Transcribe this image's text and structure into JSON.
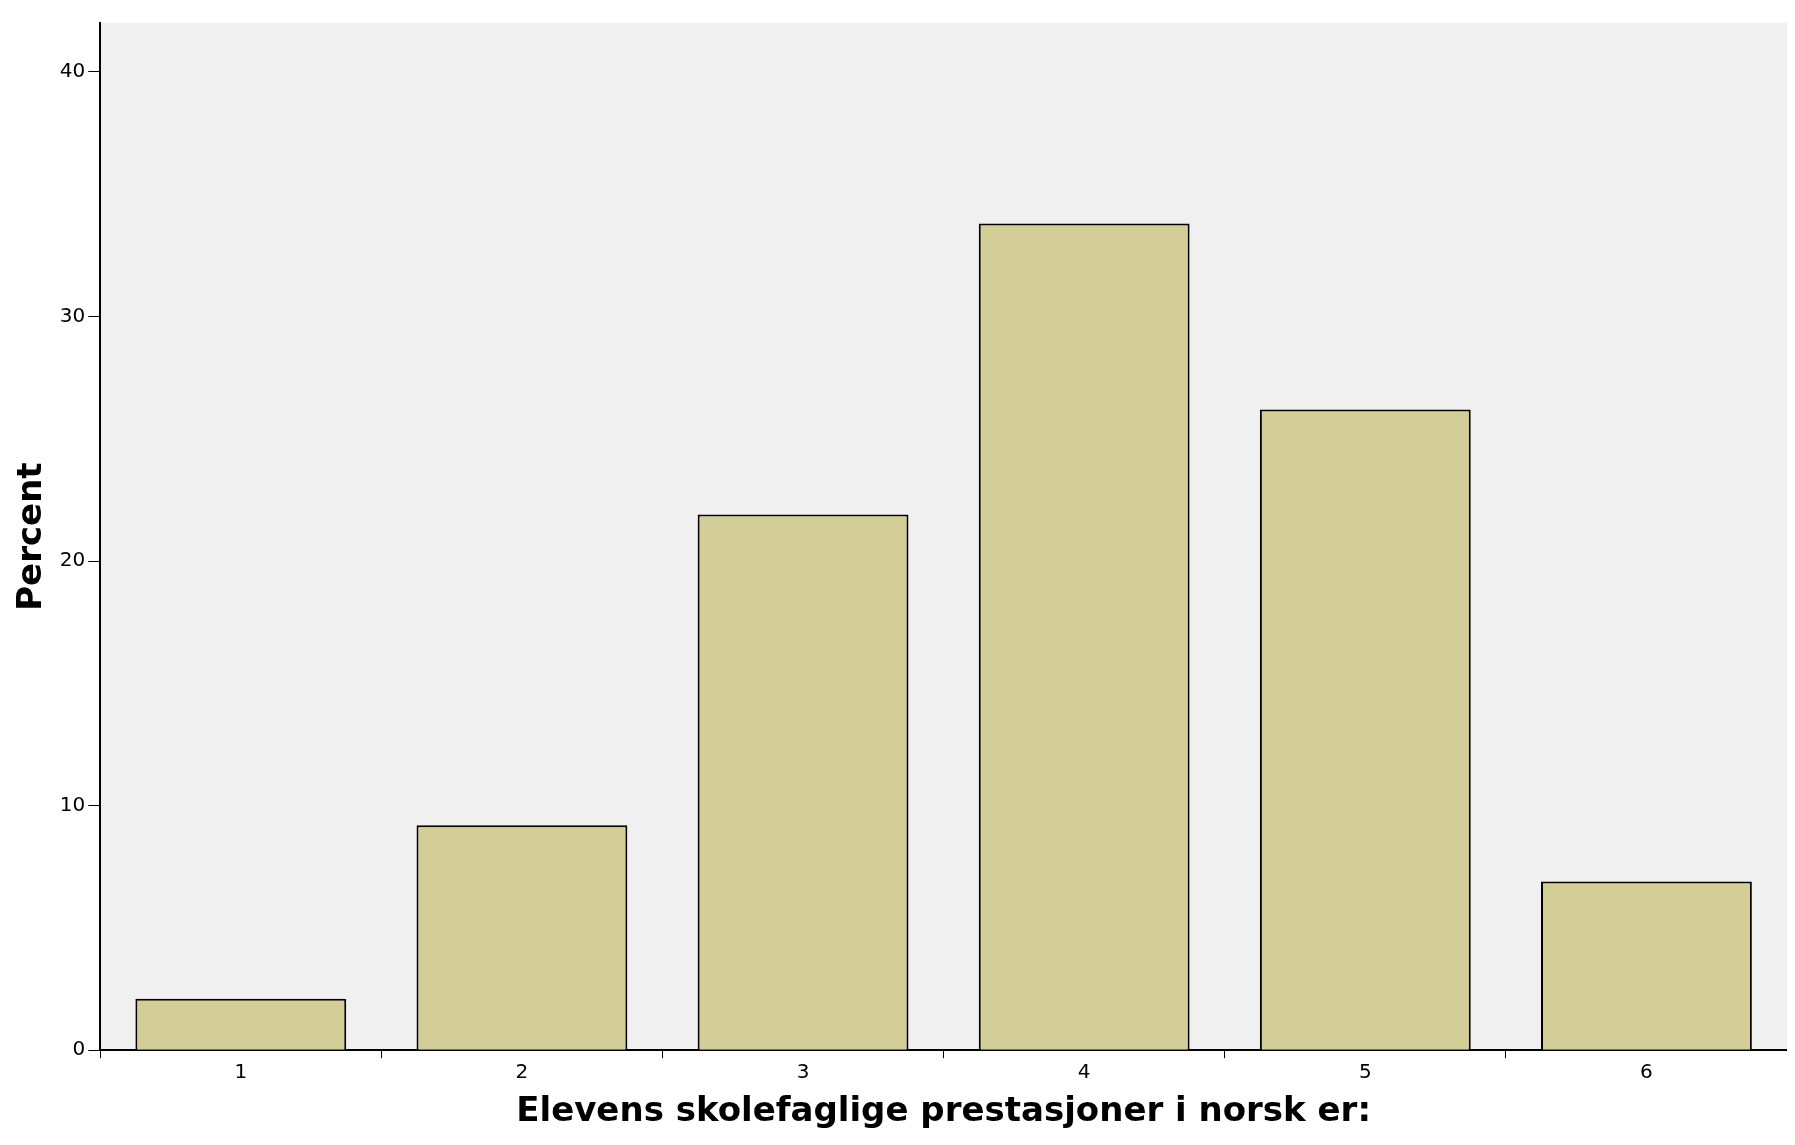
{
  "chart_data": {
    "type": "bar",
    "xlabel": "Elevens skolefaglige prestasjoner i norsk er:",
    "ylabel": "Percent",
    "categories": [
      "1",
      "2",
      "3",
      "4",
      "5",
      "6"
    ],
    "values": [
      2.1,
      9.2,
      21.9,
      33.8,
      26.2,
      6.9
    ],
    "color": "#d3ce97",
    "ylim": [
      0,
      42
    ],
    "yticks": [
      0,
      10,
      20,
      30,
      40
    ],
    "grid": false,
    "legend": false
  }
}
